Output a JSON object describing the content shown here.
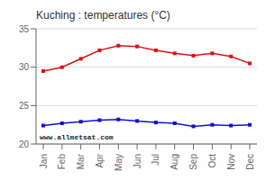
{
  "chart_data": {
    "type": "line",
    "title": "Kuching : temperatures (°C)",
    "categories": [
      "Jan",
      "Feb",
      "Mar",
      "Apr",
      "May",
      "Jun",
      "Jul",
      "Aug",
      "Sep",
      "Oct",
      "Nov",
      "Dec"
    ],
    "series": [
      {
        "color": "#dd1111",
        "marker": "square",
        "values": [
          29.5,
          30.0,
          31.1,
          32.2,
          32.8,
          32.7,
          32.2,
          31.8,
          31.5,
          31.8,
          31.4,
          30.5
        ]
      },
      {
        "color": "#1111cc",
        "marker": "square",
        "values": [
          22.4,
          22.7,
          22.9,
          23.1,
          23.2,
          23.0,
          22.8,
          22.7,
          22.3,
          22.5,
          22.4,
          22.5
        ]
      }
    ],
    "ylim": [
      20,
      35
    ],
    "yticks": [
      20,
      25,
      30,
      35
    ],
    "grid": true,
    "annotations": [
      "www.allmetsat.com"
    ]
  }
}
